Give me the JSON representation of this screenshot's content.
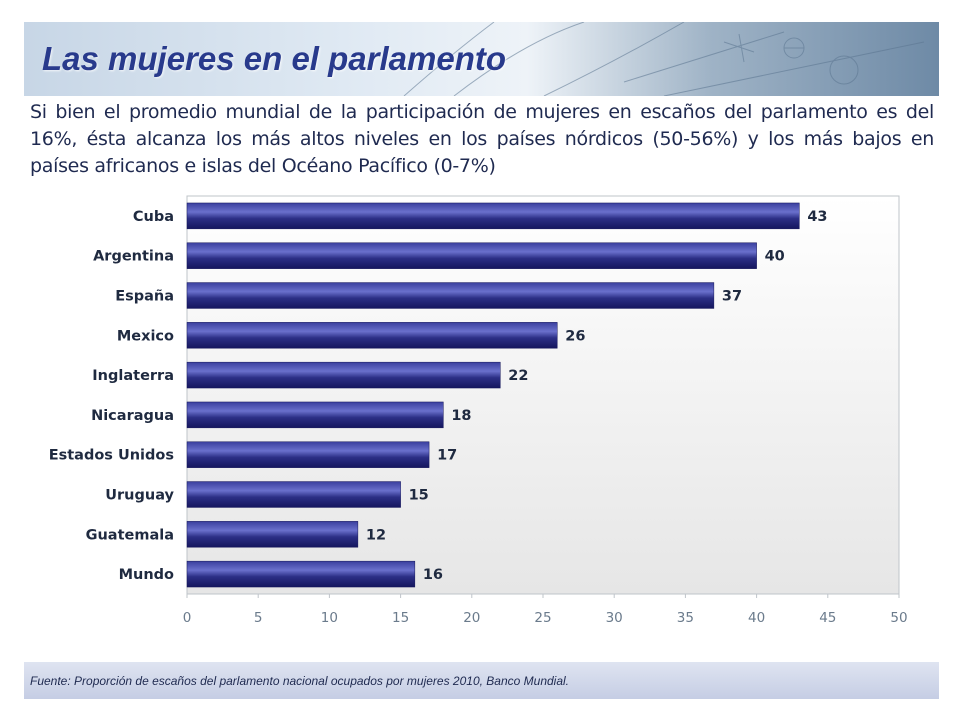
{
  "slide": {
    "title": "Las mujeres en el parlamento",
    "subtitle": "Si bien el promedio mundial de la participación de mujeres en escaños del parlamento es del 16%, ésta alcanza los más altos niveles en los países nórdicos (50-56%) y los más bajos en países africanos e islas del Océano Pacífico (0-7%)",
    "source": "Fuente: Proporción de escaños del parlamento nacional ocupados por mujeres 2010, Banco Mundial."
  },
  "colors": {
    "title": "#283a8c",
    "bar_dark": "#1a1a6e",
    "bar_light": "#5a5fc0",
    "footer": "#c9d0e6"
  },
  "chart_data": {
    "type": "bar",
    "orientation": "horizontal",
    "categories": [
      "Cuba",
      "Argentina",
      "España",
      "Mexico",
      "Inglaterra",
      "Nicaragua",
      "Estados Unidos",
      "Uruguay",
      "Guatemala",
      "Mundo"
    ],
    "values": [
      43,
      40,
      37,
      26,
      22,
      18,
      17,
      15,
      12,
      16
    ],
    "xlim": [
      0,
      50
    ],
    "xticks": [
      "0",
      "5",
      "10",
      "15",
      "20",
      "25",
      "30",
      "35",
      "40",
      "45",
      "50"
    ],
    "data_labels": true,
    "grid": false,
    "legend": "none"
  }
}
